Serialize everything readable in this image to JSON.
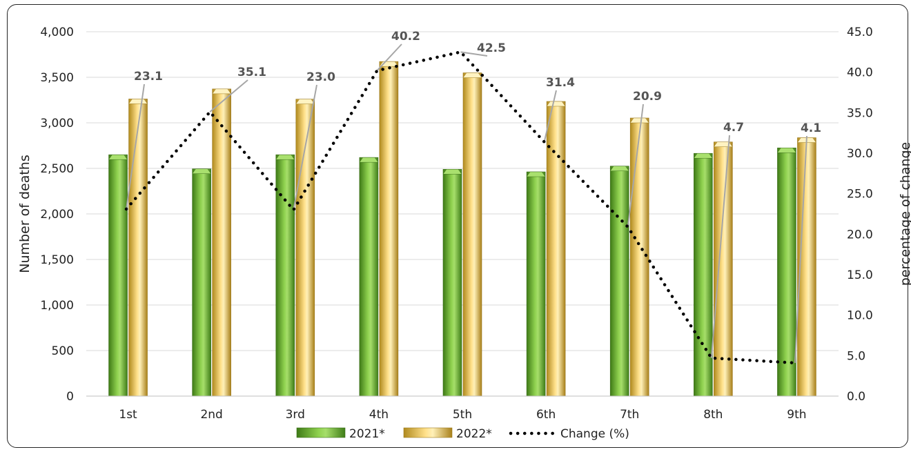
{
  "chart_data": {
    "type": "bar",
    "categories": [
      "1st",
      "2nd",
      "3rd",
      "4th",
      "5th",
      "6th",
      "7th",
      "8th",
      "9th"
    ],
    "series": [
      {
        "name": "2021*",
        "axis": "left",
        "values": [
          2650,
          2495,
          2650,
          2620,
          2490,
          2462,
          2525,
          2665,
          2725
        ],
        "color": "#7dc142"
      },
      {
        "name": "2022*",
        "axis": "left",
        "values": [
          3262,
          3372,
          3260,
          3673,
          3549,
          3235,
          3053,
          2790,
          2837
        ],
        "color": "#ffd966"
      }
    ],
    "line_series": {
      "name": "Change (%)",
      "type": "line",
      "axis": "right",
      "style": "dotted",
      "values": [
        23.1,
        35.1,
        23.0,
        40.2,
        42.5,
        31.4,
        20.9,
        4.7,
        4.1
      ],
      "labels": [
        "23.1",
        "35.1",
        "23.0",
        "40.2",
        "42.5",
        "31.4",
        "20.9",
        "4.7",
        "4.1"
      ],
      "color": "#000000"
    },
    "y_left": {
      "label": "Number of deaths",
      "ylim": [
        0,
        4000
      ],
      "ticks": [
        0,
        500,
        1000,
        1500,
        2000,
        2500,
        3000,
        3500,
        4000
      ],
      "tick_labels": [
        "0",
        "500",
        "1,000",
        "1,500",
        "2,000",
        "2,500",
        "3,000",
        "3,500",
        "4,000"
      ]
    },
    "y_right": {
      "label": "percentage of change",
      "ylim": [
        0,
        45
      ],
      "ticks": [
        0,
        5,
        10,
        15,
        20,
        25,
        30,
        35,
        40,
        45
      ],
      "tick_labels": [
        "0.0",
        "5.0",
        "10.0",
        "15.0",
        "20.0",
        "25.0",
        "30.0",
        "35.0",
        "40.0",
        "45.0"
      ]
    },
    "grid": true,
    "legend": "bottom"
  }
}
